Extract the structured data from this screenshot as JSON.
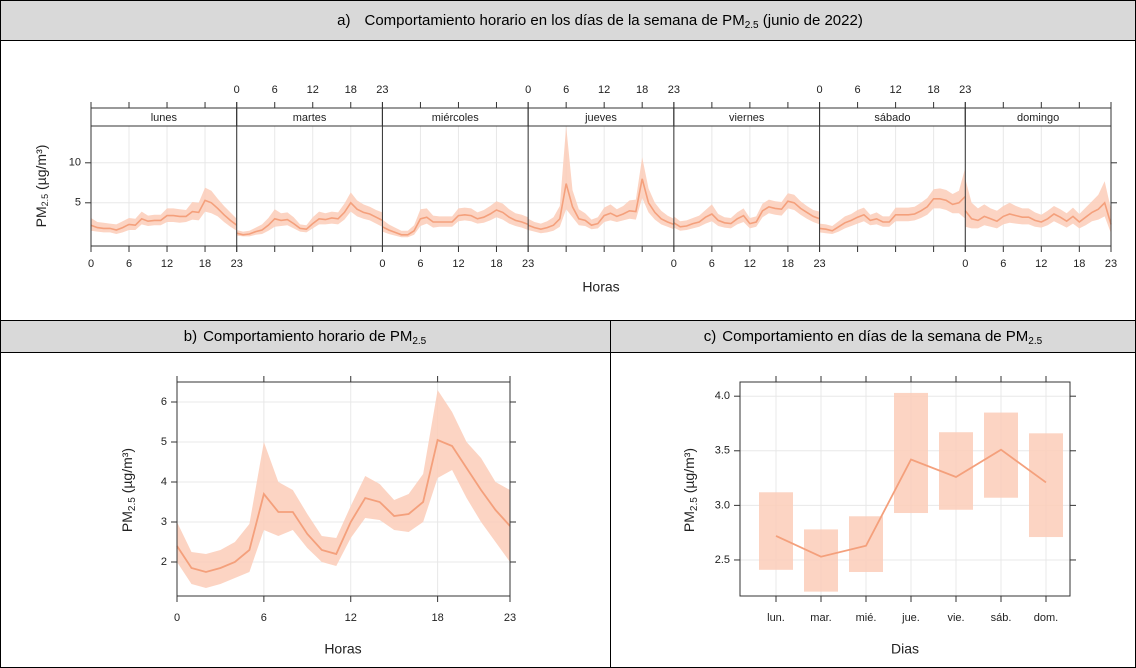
{
  "chart_data": [
    {
      "type": "faceted-line",
      "title": {
        "prefix": "a)",
        "text": "Comportamiento horario en los días de la semana de PM",
        "sub": "2.5",
        "suffix": " (junio de 2022)"
      },
      "xlabel": "Horas",
      "ylabel": {
        "text": "PM",
        "sub": "2.5",
        "suffix": " (µg/m³)"
      },
      "x": [
        0,
        1,
        2,
        3,
        4,
        5,
        6,
        7,
        8,
        9,
        10,
        11,
        12,
        13,
        14,
        15,
        16,
        17,
        18,
        19,
        20,
        21,
        22,
        23
      ],
      "xlim": [
        0,
        23
      ],
      "xticks": [
        0,
        6,
        12,
        18,
        23
      ],
      "ylim": [
        -0.4,
        14.6
      ],
      "yticks": [
        5,
        10
      ],
      "grid": true,
      "color": "#f4a07c",
      "band_color": "#fbcdb9",
      "series": [
        {
          "name": "lunes",
          "values": [
            2.2,
            1.9,
            1.8,
            1.8,
            1.6,
            1.9,
            2.3,
            2.2,
            3.0,
            2.7,
            2.8,
            2.8,
            3.4,
            3.4,
            3.3,
            3.3,
            3.9,
            3.8,
            5.3,
            5.0,
            4.3,
            3.5,
            2.8,
            2.2
          ],
          "lower": [
            1.5,
            1.4,
            1.3,
            1.3,
            1.1,
            1.3,
            1.6,
            1.6,
            2.3,
            2.1,
            2.2,
            2.2,
            2.6,
            2.6,
            2.5,
            2.6,
            2.9,
            2.8,
            3.9,
            3.7,
            3.3,
            2.6,
            2.0,
            1.5
          ],
          "upper": [
            3.1,
            2.6,
            2.5,
            2.4,
            2.3,
            2.7,
            3.1,
            3.0,
            3.9,
            3.4,
            3.5,
            3.5,
            4.3,
            4.3,
            4.2,
            4.1,
            5.1,
            5.0,
            6.9,
            6.5,
            5.5,
            4.6,
            3.8,
            3.0
          ]
        },
        {
          "name": "martes",
          "values": [
            1.2,
            1.0,
            1.1,
            1.4,
            1.6,
            2.2,
            3.0,
            2.8,
            2.9,
            2.4,
            1.8,
            1.7,
            2.4,
            3.0,
            2.9,
            3.1,
            3.0,
            3.8,
            5.0,
            4.2,
            3.8,
            3.6,
            3.2,
            2.8
          ],
          "lower": [
            0.9,
            0.8,
            0.8,
            1.0,
            1.1,
            1.5,
            2.0,
            2.1,
            2.2,
            1.8,
            1.4,
            1.3,
            1.8,
            2.3,
            2.3,
            2.4,
            2.3,
            2.9,
            3.9,
            3.3,
            3.0,
            2.8,
            2.4,
            2.0
          ],
          "upper": [
            1.6,
            1.4,
            1.5,
            1.9,
            2.3,
            3.1,
            4.2,
            3.7,
            3.8,
            3.2,
            2.3,
            2.2,
            3.2,
            3.9,
            3.7,
            3.9,
            3.8,
            4.9,
            6.3,
            5.3,
            4.8,
            4.5,
            4.1,
            3.8
          ]
        },
        {
          "name": "miércoles",
          "values": [
            2.0,
            1.6,
            1.3,
            1.0,
            1.0,
            1.5,
            3.0,
            3.2,
            2.6,
            2.6,
            2.6,
            2.6,
            3.4,
            3.5,
            3.4,
            3.0,
            3.2,
            3.6,
            4.1,
            3.8,
            3.2,
            2.8,
            2.6,
            2.3
          ],
          "lower": [
            1.4,
            1.1,
            0.9,
            0.7,
            0.7,
            1.0,
            2.1,
            2.4,
            1.9,
            2.0,
            2.0,
            2.0,
            2.7,
            2.8,
            2.7,
            2.4,
            2.5,
            2.8,
            3.2,
            2.9,
            2.4,
            2.1,
            1.9,
            1.6
          ],
          "upper": [
            2.9,
            2.3,
            1.9,
            1.5,
            1.5,
            2.2,
            4.2,
            4.3,
            3.4,
            3.3,
            3.3,
            3.3,
            4.3,
            4.4,
            4.3,
            3.8,
            4.1,
            4.6,
            5.2,
            4.9,
            4.2,
            3.7,
            3.5,
            3.2
          ]
        },
        {
          "name": "jueves",
          "values": [
            2.2,
            1.9,
            1.7,
            1.9,
            2.2,
            3.0,
            7.4,
            4.5,
            3.0,
            2.8,
            2.2,
            2.4,
            3.4,
            3.7,
            3.3,
            3.6,
            4.0,
            3.9,
            8.0,
            5.0,
            3.8,
            3.0,
            2.6,
            2.3
          ],
          "lower": [
            1.6,
            1.4,
            1.2,
            1.3,
            1.5,
            2.0,
            4.2,
            3.2,
            2.2,
            2.1,
            1.7,
            1.8,
            2.6,
            2.8,
            2.6,
            2.8,
            3.0,
            2.9,
            5.6,
            3.8,
            2.9,
            2.3,
            2.0,
            1.7
          ],
          "upper": [
            3.0,
            2.6,
            2.4,
            2.7,
            3.2,
            4.6,
            14.6,
            6.6,
            4.2,
            3.7,
            2.9,
            3.2,
            4.4,
            4.8,
            4.2,
            4.6,
            5.3,
            5.4,
            10.7,
            6.8,
            5.0,
            4.0,
            3.4,
            3.0
          ]
        },
        {
          "name": "viernes",
          "values": [
            2.5,
            2.0,
            2.1,
            2.4,
            2.6,
            3.2,
            3.6,
            2.8,
            2.5,
            2.4,
            3.0,
            3.4,
            2.4,
            2.6,
            4.0,
            4.5,
            4.3,
            4.2,
            5.2,
            5.0,
            4.3,
            3.8,
            3.3,
            3.0
          ],
          "lower": [
            1.9,
            1.5,
            1.6,
            1.8,
            2.0,
            2.4,
            2.7,
            2.1,
            1.9,
            1.8,
            2.3,
            2.6,
            1.8,
            2.0,
            3.2,
            3.7,
            3.5,
            3.4,
            4.3,
            4.1,
            3.5,
            3.0,
            2.6,
            2.3
          ],
          "upper": [
            3.3,
            2.7,
            2.8,
            3.1,
            3.4,
            4.1,
            4.8,
            3.6,
            3.2,
            3.1,
            3.8,
            4.3,
            3.1,
            3.3,
            4.9,
            5.4,
            5.2,
            5.1,
            6.2,
            6.0,
            5.2,
            4.6,
            4.1,
            3.9
          ]
        },
        {
          "name": "sábado",
          "values": [
            1.8,
            1.7,
            1.5,
            2.0,
            2.5,
            2.8,
            3.2,
            3.5,
            2.8,
            3.0,
            2.6,
            2.6,
            3.5,
            3.5,
            3.5,
            3.6,
            4.0,
            4.5,
            5.5,
            5.5,
            5.3,
            4.8,
            5.0,
            5.8
          ],
          "lower": [
            1.3,
            1.2,
            1.1,
            1.4,
            1.8,
            2.1,
            2.4,
            2.7,
            2.2,
            2.3,
            2.0,
            2.0,
            2.7,
            2.7,
            2.7,
            2.8,
            3.1,
            3.5,
            4.3,
            4.3,
            4.1,
            3.7,
            3.7,
            3.0
          ],
          "upper": [
            2.4,
            2.3,
            2.1,
            2.7,
            3.3,
            3.6,
            4.1,
            4.4,
            3.5,
            3.8,
            3.3,
            3.3,
            4.4,
            4.4,
            4.4,
            4.5,
            5.0,
            5.6,
            6.7,
            6.8,
            6.6,
            6.1,
            6.5,
            9.4
          ]
        },
        {
          "name": "domingo",
          "values": [
            4.0,
            3.0,
            2.8,
            3.3,
            3.0,
            2.7,
            3.3,
            3.6,
            3.4,
            3.2,
            3.2,
            2.8,
            2.6,
            3.0,
            3.6,
            3.2,
            2.7,
            3.3,
            2.6,
            3.2,
            3.8,
            4.2,
            5.0,
            2.3
          ],
          "lower": [
            2.0,
            1.8,
            1.8,
            2.2,
            2.0,
            1.8,
            2.3,
            2.5,
            2.4,
            2.3,
            2.3,
            2.0,
            1.9,
            2.2,
            2.7,
            2.3,
            1.9,
            2.4,
            1.8,
            2.2,
            2.7,
            2.9,
            3.3,
            1.2
          ],
          "upper": [
            8.0,
            5.0,
            4.3,
            4.8,
            4.3,
            4.0,
            4.6,
            5.0,
            4.6,
            4.3,
            4.3,
            3.8,
            3.5,
            4.0,
            4.6,
            4.2,
            3.7,
            4.4,
            3.6,
            4.4,
            5.2,
            6.0,
            7.7,
            4.2
          ]
        }
      ]
    },
    {
      "type": "line",
      "title": {
        "prefix": "b)",
        "text": "Comportamiento horario de PM",
        "sub": "2.5"
      },
      "xlabel": "Horas",
      "ylabel": {
        "text": "PM",
        "sub": "2.5",
        "suffix": " (µg/m³)"
      },
      "x": [
        0,
        1,
        2,
        3,
        4,
        5,
        6,
        7,
        8,
        9,
        10,
        11,
        12,
        13,
        14,
        15,
        16,
        17,
        18,
        19,
        20,
        21,
        22,
        23
      ],
      "values": [
        2.4,
        1.85,
        1.75,
        1.85,
        2.0,
        2.3,
        3.7,
        3.25,
        3.25,
        2.7,
        2.3,
        2.2,
        3.0,
        3.6,
        3.5,
        3.15,
        3.2,
        3.5,
        5.05,
        4.9,
        4.35,
        3.8,
        3.3,
        2.9
      ],
      "lower": [
        2.0,
        1.45,
        1.35,
        1.45,
        1.6,
        1.75,
        2.8,
        2.65,
        2.8,
        2.35,
        2.0,
        1.9,
        2.6,
        3.1,
        3.05,
        2.8,
        2.75,
        3.0,
        4.1,
        4.3,
        3.6,
        3.0,
        2.5,
        2.0
      ],
      "upper": [
        3.0,
        2.25,
        2.2,
        2.3,
        2.5,
        2.95,
        5.0,
        4.0,
        3.8,
        3.2,
        2.65,
        2.6,
        3.4,
        4.15,
        3.95,
        3.55,
        3.7,
        4.2,
        6.3,
        5.75,
        5.0,
        4.6,
        4.0,
        3.8
      ],
      "xlim": [
        0,
        23
      ],
      "xticks": [
        0,
        6,
        12,
        18,
        23
      ],
      "ylim": [
        1.15,
        6.5
      ],
      "yticks": [
        2,
        3,
        4,
        5,
        6
      ],
      "grid": true,
      "color": "#f4a07c",
      "band_color": "#fbcdb9"
    },
    {
      "type": "line",
      "title": {
        "prefix": "c)",
        "text": "Comportamiento en días de la semana de PM",
        "sub": "2.5"
      },
      "xlabel": "Dias",
      "ylabel": {
        "text": "PM",
        "sub": "2.5",
        "suffix": " (µg/m³)"
      },
      "categories": [
        "lun.",
        "mar.",
        "mié.",
        "jue.",
        "vie.",
        "sáb.",
        "dom."
      ],
      "values": [
        2.72,
        2.53,
        2.63,
        3.42,
        3.26,
        3.51,
        3.21
      ],
      "lower": [
        2.41,
        2.21,
        2.39,
        2.93,
        2.96,
        3.07,
        2.71
      ],
      "upper": [
        3.12,
        2.78,
        2.9,
        4.03,
        3.67,
        3.85,
        3.66
      ],
      "ylim": [
        2.17,
        4.13
      ],
      "yticks": [
        2.5,
        {
          "value": 3,
          "label": "3.0"
        },
        3.5,
        {
          "value": 4,
          "label": "4.0"
        }
      ],
      "grid": true,
      "color": "#f4a07c",
      "band_color": "#fbcdb9"
    }
  ]
}
